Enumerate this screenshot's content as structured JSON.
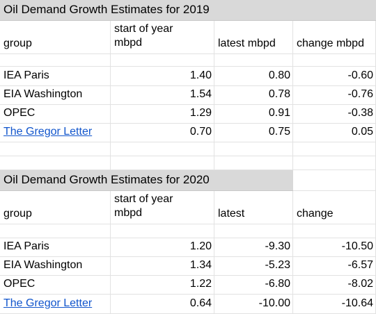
{
  "tables": [
    {
      "title": "Oil Demand Growth Estimates for 2019",
      "headers": {
        "group": "group",
        "start_line1": "start of year",
        "start_line2": "mbpd",
        "latest": "latest mbpd",
        "change": "change mbpd"
      },
      "rows": [
        {
          "group": "IEA Paris",
          "start": "1.40",
          "latest": "0.80",
          "change": "-0.60"
        },
        {
          "group": "EIA Washington",
          "start": "1.54",
          "latest": "0.78",
          "change": "-0.76"
        },
        {
          "group": "OPEC",
          "start": "1.29",
          "latest": "0.91",
          "change": "-0.38"
        },
        {
          "group": "The Gregor Letter",
          "start": "0.70",
          "latest": "0.75",
          "change": "0.05"
        }
      ]
    },
    {
      "title": "Oil Demand Growth Estimates for 2020",
      "headers": {
        "group": "group",
        "start_line1": "start of year",
        "start_line2": "mbpd",
        "latest": "latest",
        "change": "change"
      },
      "rows": [
        {
          "group": "IEA Paris",
          "start": "1.20",
          "latest": "-9.30",
          "change": "-10.50"
        },
        {
          "group": "EIA Washington",
          "start": "1.34",
          "latest": "-5.23",
          "change": "-6.57"
        },
        {
          "group": "OPEC",
          "start": "1.22",
          "latest": "-6.80",
          "change": "-8.02"
        },
        {
          "group": "The Gregor Letter",
          "start": "0.64",
          "latest": "-10.00",
          "change": "-10.64"
        }
      ]
    }
  ]
}
